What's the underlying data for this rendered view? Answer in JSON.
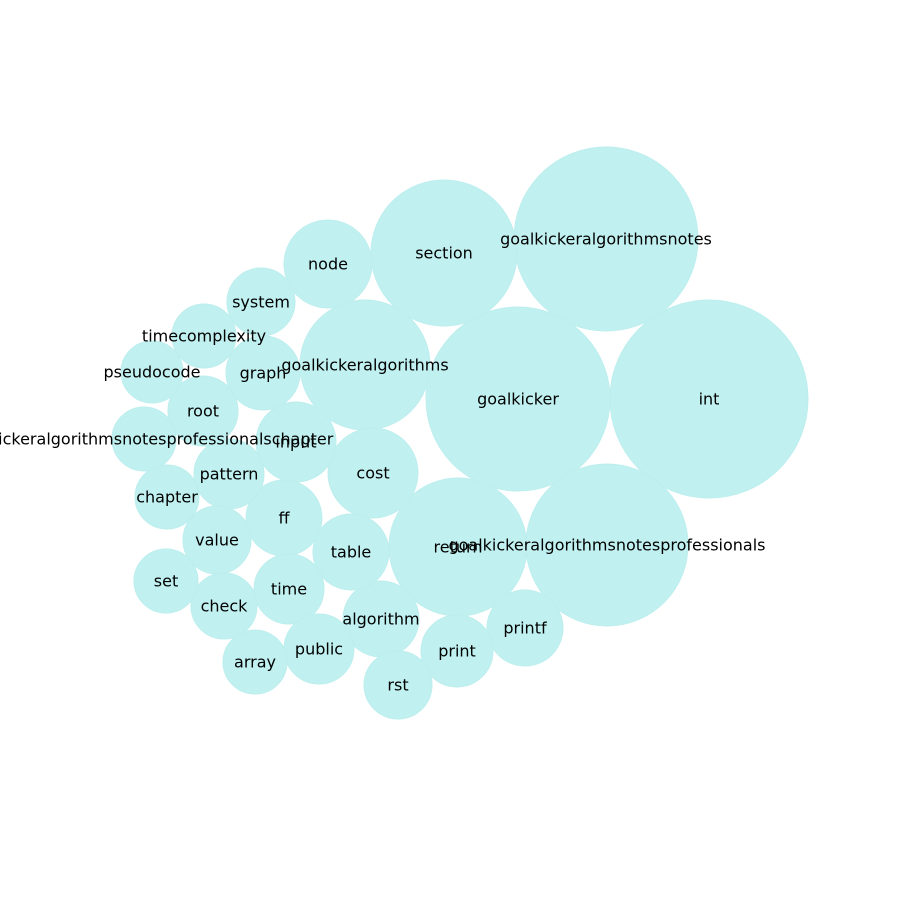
{
  "chart_data": {
    "type": "bubble",
    "color": "#c0f0f0",
    "items": [
      {
        "label": "int",
        "size": 9.9
      },
      {
        "label": "goalkickeralgorithmsnotes",
        "size": 9.2
      },
      {
        "label": "goalkicker",
        "size": 9.2
      },
      {
        "label": "goalkickeralgorithmsnotesprofessionals",
        "size": 8.1
      },
      {
        "label": "section",
        "size": 7.3
      },
      {
        "label": "return",
        "size": 6.9
      },
      {
        "label": "goalkickeralgorithms",
        "size": 6.5
      },
      {
        "label": "cost",
        "size": 4.5
      },
      {
        "label": "node",
        "size": 4.4
      },
      {
        "label": "input",
        "size": 4.0
      },
      {
        "label": "algorithm",
        "size": 3.8
      },
      {
        "label": "printf",
        "size": 3.8
      },
      {
        "label": "table",
        "size": 3.8
      },
      {
        "label": "ff",
        "size": 3.8
      },
      {
        "label": "graph",
        "size": 3.7
      },
      {
        "label": "print",
        "size": 3.6
      },
      {
        "label": "pattern",
        "size": 3.5
      },
      {
        "label": "time",
        "size": 3.5
      },
      {
        "label": "public",
        "size": 3.5
      },
      {
        "label": "root",
        "size": 3.5
      },
      {
        "label": "system",
        "size": 3.4
      },
      {
        "label": "rst",
        "size": 3.4
      },
      {
        "label": "value",
        "size": 3.4
      },
      {
        "label": "check",
        "size": 3.3
      },
      {
        "label": "chapter",
        "size": 3.2
      },
      {
        "label": "timecomplexity",
        "size": 3.2
      },
      {
        "label": "set",
        "size": 3.2
      },
      {
        "label": "array",
        "size": 3.2
      },
      {
        "label": "goalkickeralgorithmsnotesprofessionalschapter",
        "size": 3.2
      },
      {
        "label": "pseudocode",
        "size": 3.1
      }
    ]
  }
}
